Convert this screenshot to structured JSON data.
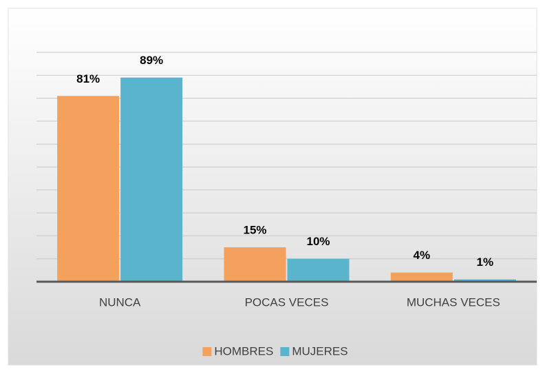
{
  "chart_data": {
    "type": "bar",
    "categories": [
      "NUNCA",
      "POCAS VECES",
      "MUCHAS VECES"
    ],
    "series": [
      {
        "name": "HOMBRES",
        "color": "#f4a15d",
        "values": [
          81,
          15,
          4
        ],
        "value_labels": [
          "81%",
          "15%",
          "4%"
        ]
      },
      {
        "name": "MUJERES",
        "color": "#5ab4cb",
        "values": [
          89,
          10,
          1
        ],
        "value_labels": [
          "89%",
          "10%",
          "1%"
        ]
      }
    ],
    "ylim": [
      0,
      100
    ],
    "yticks": [
      0,
      10,
      20,
      30,
      40,
      50,
      60,
      70,
      80,
      90,
      100
    ],
    "grid": true,
    "legend": "bottom"
  }
}
